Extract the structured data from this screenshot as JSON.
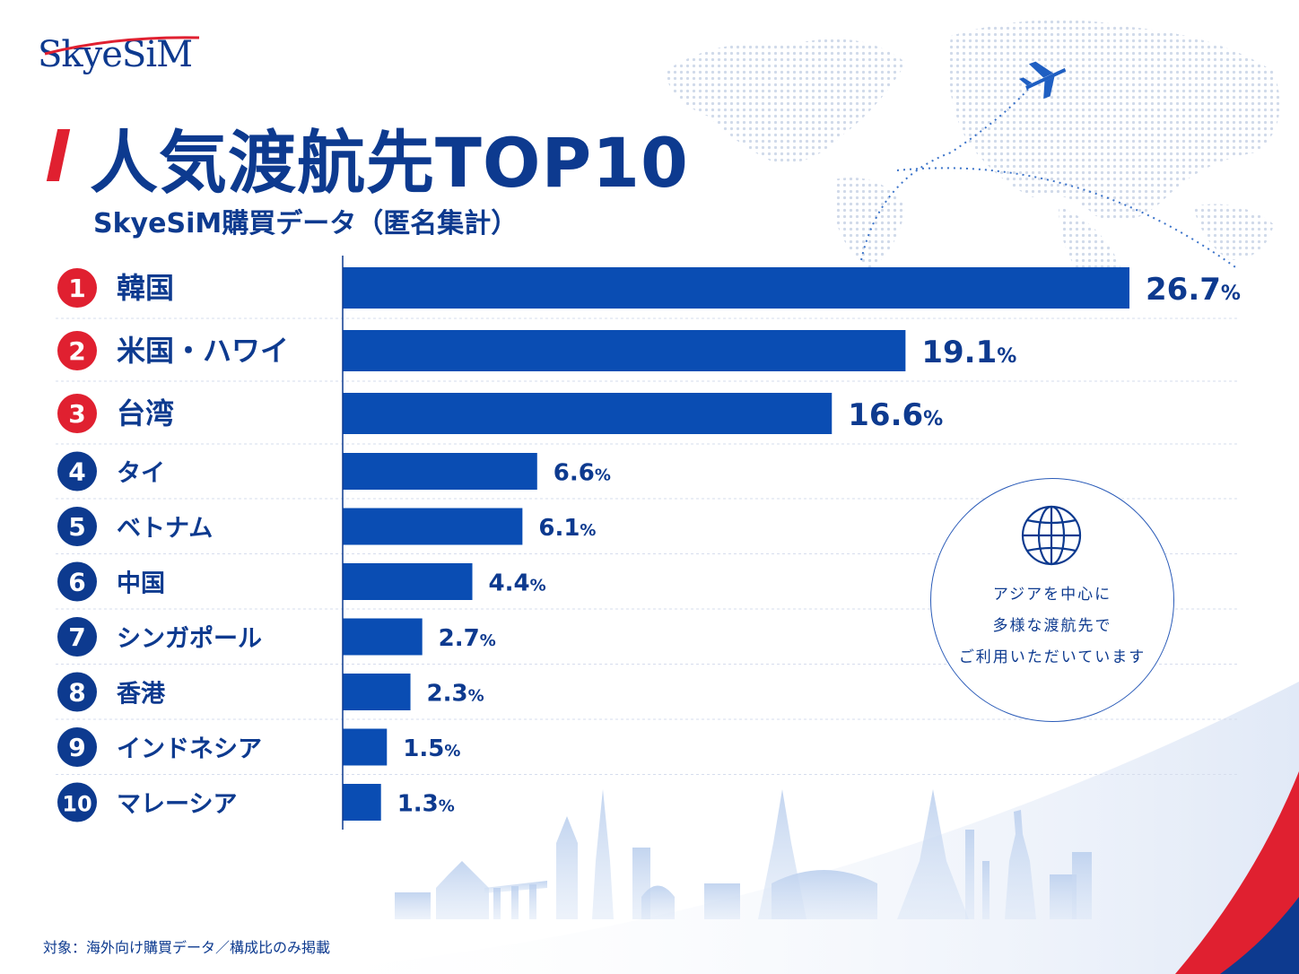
{
  "brand": {
    "logo_text": "SkyeSiM",
    "accent_red": "#e02030",
    "accent_blue": "#0a4db3"
  },
  "header": {
    "title": "人気渡航先TOP10",
    "subtitle": "SkyeSiM購買データ（匿名集計）"
  },
  "callout": {
    "icon": "globe-icon",
    "lines": [
      "アジアを中心に",
      "多様な渡航先で",
      "ご利用いただいています"
    ]
  },
  "footnote": "対象：海外向け購買データ／構成比のみ掲載",
  "chart_data": {
    "type": "bar",
    "orientation": "horizontal",
    "categories": [
      "韓国",
      "米国・ハワイ",
      "台湾",
      "タイ",
      "ベトナム",
      "中国",
      "シンガポール",
      "香港",
      "インドネシア",
      "マレーシア"
    ],
    "ranks": [
      "1",
      "2",
      "3",
      "4",
      "5",
      "6",
      "7",
      "8",
      "9",
      "10"
    ],
    "values": [
      26.7,
      19.1,
      16.6,
      6.6,
      6.1,
      4.4,
      2.7,
      2.3,
      1.5,
      1.3
    ],
    "value_suffix": "%",
    "top_rank_color": "#e02030",
    "rank_color": "#0d3a8f",
    "bar_color": "#0a4db3",
    "xlim": [
      0,
      26.7
    ],
    "grid": false
  }
}
